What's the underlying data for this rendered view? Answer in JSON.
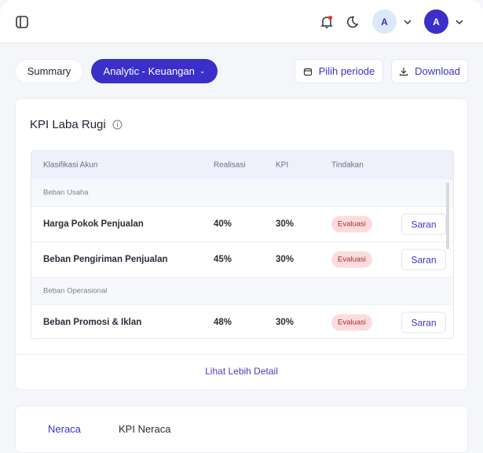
{
  "header": {
    "notification_dot_color": "#e53935",
    "avatar1": "A",
    "avatar2": "A"
  },
  "toolbar": {
    "summary": "Summary",
    "analytic": "Analytic - Keuangan",
    "periode": "Pilih periode",
    "download": "Download"
  },
  "kpi_card": {
    "title": "KPI Laba Rugi",
    "columns": [
      "Klasifikasi Akun",
      "Realisasi",
      "KPI",
      "Tindakan"
    ],
    "groups": [
      {
        "name": "Beban Usaha",
        "rows": [
          {
            "name": "Harga Pokok Penjualan",
            "realisasi": "40%",
            "kpi": "30%",
            "status": "Evaluasi",
            "action": "Saran"
          },
          {
            "name": "Beban Pengiriman Penjualan",
            "realisasi": "45%",
            "kpi": "30%",
            "status": "Evaluasi",
            "action": "Saran"
          }
        ]
      },
      {
        "name": "Beban Operasional",
        "rows": [
          {
            "name": "Beban Promosi & Iklan",
            "realisasi": "48%",
            "kpi": "30%",
            "status": "Evaluasi",
            "action": "Saran"
          }
        ]
      }
    ],
    "more": "Lihat Lebih Detail"
  },
  "tabs": [
    {
      "label": "Neraca",
      "active": true
    },
    {
      "label": "KPI Neraca",
      "active": false
    }
  ],
  "colors": {
    "primary": "#3b2fc9"
  }
}
